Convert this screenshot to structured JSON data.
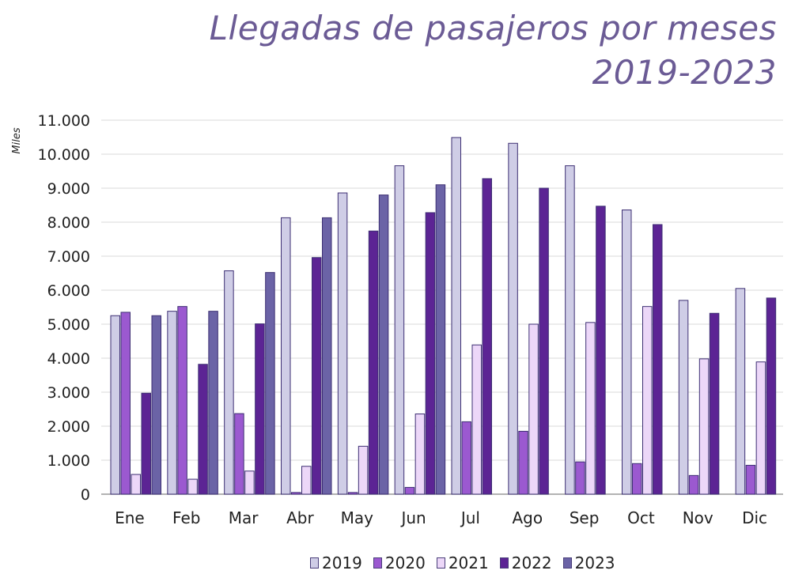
{
  "title_line1": "Llegadas de pasajeros por meses",
  "title_line2": "2019-2023",
  "chart_data": {
    "type": "bar",
    "title": "Llegadas de pasajeros por meses 2019-2023",
    "ylabel": "Miles",
    "xlabel": "",
    "ylim": [
      0,
      11000
    ],
    "yticks": [
      0,
      1000,
      2000,
      3000,
      4000,
      5000,
      6000,
      7000,
      8000,
      9000,
      10000,
      11000
    ],
    "ytick_labels": [
      "0",
      "1.000",
      "2.000",
      "3.000",
      "4.000",
      "5.000",
      "6.000",
      "7.000",
      "8.000",
      "9.000",
      "10.000",
      "11.000"
    ],
    "grid": true,
    "legend_position": "bottom",
    "categories": [
      "Ene",
      "Feb",
      "Mar",
      "Abr",
      "May",
      "Jun",
      "Jul",
      "Ago",
      "Sep",
      "Oct",
      "Nov",
      "Dic"
    ],
    "series": [
      {
        "name": "2019",
        "color": "#cfcde6",
        "values": [
          5250,
          5380,
          6570,
          8130,
          8860,
          9660,
          10490,
          10320,
          9660,
          8360,
          5700,
          6050
        ]
      },
      {
        "name": "2020",
        "color": "#9b59d0",
        "values": [
          5350,
          5520,
          2370,
          50,
          50,
          200,
          2130,
          1850,
          950,
          900,
          550,
          850
        ]
      },
      {
        "name": "2021",
        "color": "#ecd7f8",
        "values": [
          580,
          440,
          680,
          820,
          1410,
          2360,
          4390,
          5000,
          5050,
          5520,
          3980,
          3890
        ]
      },
      {
        "name": "2022",
        "color": "#5c2494",
        "values": [
          2970,
          3820,
          5010,
          6960,
          7740,
          8280,
          9280,
          9000,
          8470,
          7930,
          5320,
          5770
        ]
      },
      {
        "name": "2023",
        "color": "#6b63a6",
        "values": [
          5250,
          5380,
          6520,
          8130,
          8800,
          9100,
          null,
          null,
          null,
          null,
          null,
          null
        ]
      }
    ]
  }
}
